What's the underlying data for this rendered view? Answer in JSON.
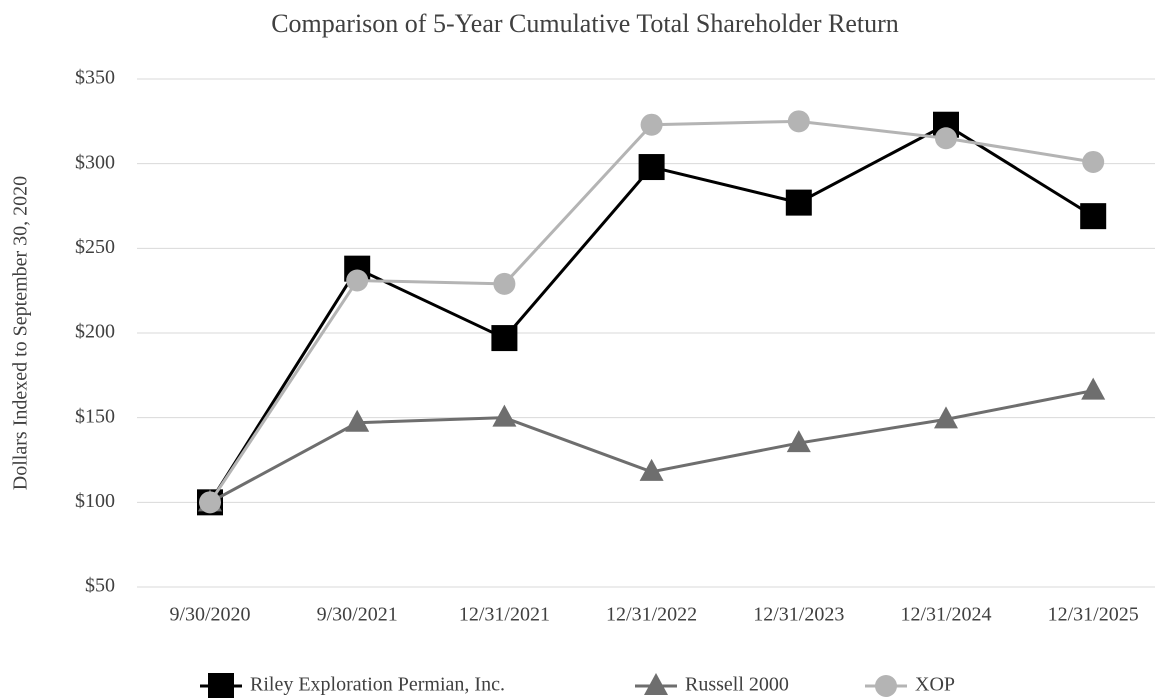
{
  "chart_data": {
    "type": "line",
    "title": "Comparison of 5-Year Cumulative Total Shareholder Return",
    "y_label": "Dollars Indexed to September 30, 2020",
    "categories": [
      "9/30/2020",
      "9/30/2021",
      "12/31/2021",
      "12/31/2022",
      "12/31/2023",
      "12/31/2024",
      "12/31/2025"
    ],
    "series": [
      {
        "name": "Riley Exploration Permian, Inc.",
        "color": "#000000",
        "marker": "square",
        "values": [
          100,
          238,
          197,
          298,
          277,
          323,
          269
        ]
      },
      {
        "name": "Russell 2000",
        "color": "#6e6e6e",
        "marker": "triangle",
        "values": [
          100,
          147,
          150,
          118,
          135,
          149,
          166
        ]
      },
      {
        "name": "XOP",
        "color": "#b4b4b4",
        "marker": "circle",
        "values": [
          100,
          231,
          229,
          323,
          325,
          315,
          301
        ]
      }
    ],
    "ylim": [
      50,
      350
    ],
    "yticks": [
      {
        "value": 50,
        "label": "$50"
      },
      {
        "value": 100,
        "label": "$100"
      },
      {
        "value": 150,
        "label": "$150"
      },
      {
        "value": 200,
        "label": "$200"
      },
      {
        "value": 250,
        "label": "$250"
      },
      {
        "value": 300,
        "label": "$300"
      },
      {
        "value": 350,
        "label": "$350"
      }
    ],
    "grid": true,
    "legend": "bottom"
  }
}
